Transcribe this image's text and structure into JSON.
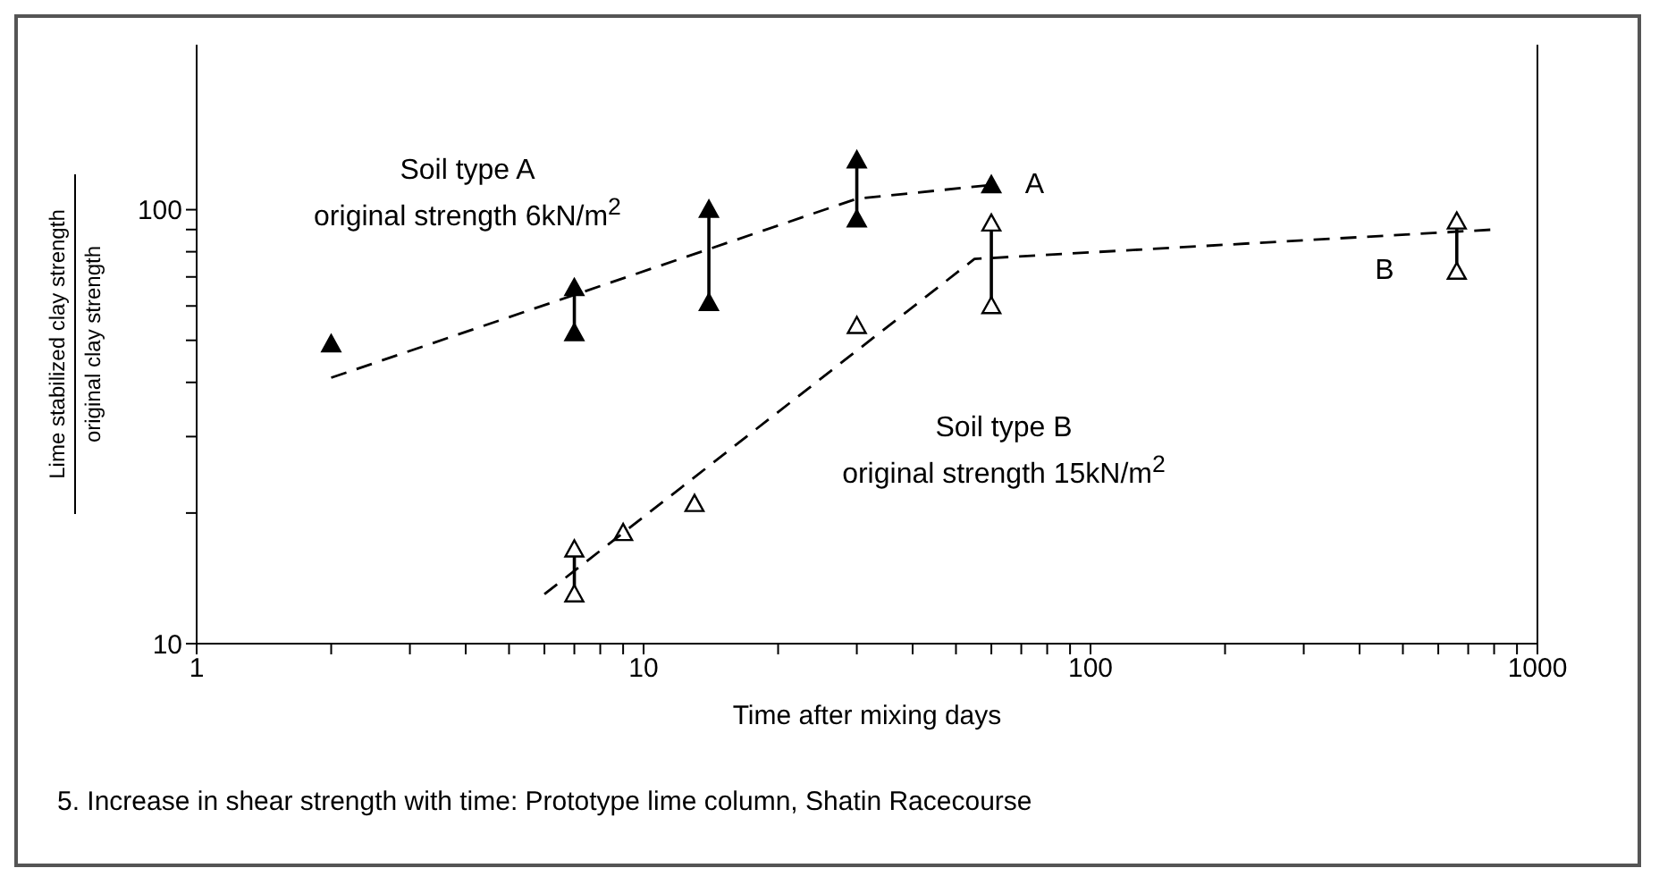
{
  "chart_data": {
    "type": "scatter",
    "xlabel": "Time after mixing days",
    "ylabel": "Lime stabilized clay strength\noriginal clay strength",
    "log": "xy",
    "xlim": [
      1,
      1000
    ],
    "xticks": [
      1,
      {
        "value": 2,
        "label": null
      },
      {
        "value": 3,
        "label": null
      },
      {
        "value": 4,
        "label": null
      },
      {
        "value": 5,
        "label": null
      },
      {
        "value": 6,
        "label": null
      },
      {
        "value": 7,
        "label": null
      },
      {
        "value": 8,
        "label": null
      },
      {
        "value": 9,
        "label": null
      },
      10,
      {
        "value": 20,
        "label": null
      },
      {
        "value": 30,
        "label": null
      },
      {
        "value": 40,
        "label": null
      },
      {
        "value": 50,
        "label": null
      },
      {
        "value": 60,
        "label": null
      },
      {
        "value": 70,
        "label": null
      },
      {
        "value": 80,
        "label": null
      },
      {
        "value": 90,
        "label": null
      },
      100,
      {
        "value": 200,
        "label": null
      },
      {
        "value": 300,
        "label": null
      },
      {
        "value": 400,
        "label": null
      },
      {
        "value": 500,
        "label": null
      },
      {
        "value": 600,
        "label": null
      },
      {
        "value": 700,
        "label": null
      },
      {
        "value": 800,
        "label": null
      },
      {
        "value": 900,
        "label": null
      },
      1000
    ],
    "ylim": [
      10,
      240
    ],
    "yticks": [
      10,
      {
        "value": 20,
        "label": null
      },
      {
        "value": 30,
        "label": null
      },
      {
        "value": 40,
        "label": null
      },
      {
        "value": 50,
        "label": null
      },
      {
        "value": 60,
        "label": null
      },
      {
        "value": 70,
        "label": null
      },
      {
        "value": 80,
        "label": null
      },
      {
        "value": 90,
        "label": null
      },
      100
    ],
    "marker": "triangle",
    "grid": false,
    "legend": false,
    "series": [
      {
        "color": "#000000",
        "x": [
          2,
          7,
          7,
          14,
          14,
          30,
          30,
          60
        ],
        "values": [
          49,
          52,
          66,
          61,
          100,
          95,
          130,
          114
        ],
        "errors": [
          null,
          [
            52,
            66
          ],
          null,
          [
            61,
            100
          ],
          null,
          [
            95,
            130
          ],
          null,
          null
        ]
      },
      {
        "color": "#000000",
        "x": [
          7,
          7,
          9,
          13,
          30,
          60,
          60,
          660,
          660
        ],
        "values": [
          13,
          16.5,
          18,
          21,
          54,
          60,
          93,
          72,
          94
        ],
        "errors": [
          [
            13,
            16.5
          ],
          null,
          null,
          null,
          null,
          [
            60,
            93
          ],
          null,
          [
            72,
            94
          ],
          null
        ]
      },
      {
        "type": "line",
        "color": "#000000",
        "line_style": "dashed",
        "marker": "none",
        "x": [
          2,
          30,
          60
        ],
        "values": [
          41,
          106,
          114
        ]
      },
      {
        "type": "line",
        "color": "#000000",
        "line_style": "dashed",
        "marker": "none",
        "x": [
          6,
          55,
          800
        ],
        "values": [
          13,
          77,
          90
        ]
      }
    ],
    "annotations": [
      "Soil type A\noriginal strength 6kN/m$^{2}$",
      "Soil type B\noriginal strength 15kN/m$^{2}$",
      "A",
      "B",
      "5. Increase in shear strength with time: Prototype lime column, Shatin Racecourse"
    ]
  }
}
